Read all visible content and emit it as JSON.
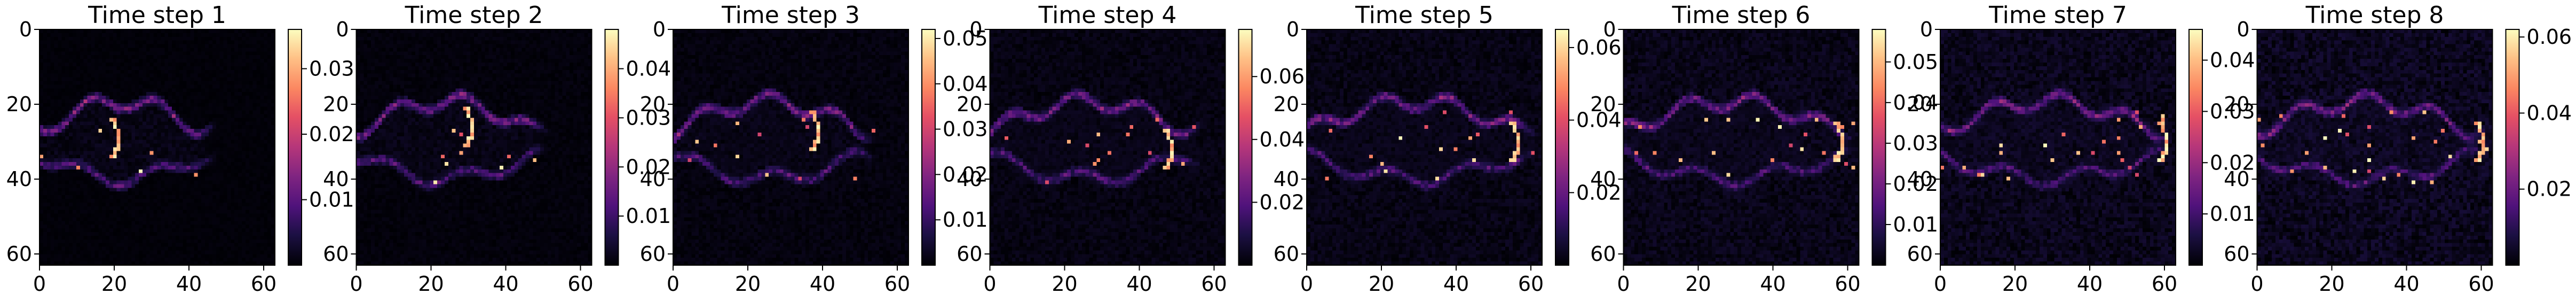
{
  "figure": {
    "colormap": "magma",
    "background": "#ffffff"
  },
  "chart_data": [
    {
      "type": "heatmap",
      "title": "Time step 1",
      "xlim": [
        0,
        63
      ],
      "ylim": [
        63,
        0
      ],
      "x_ticks": [
        0,
        20,
        40,
        60
      ],
      "y_ticks": [
        0,
        20,
        40,
        60
      ],
      "x_tick_labels": [
        "0",
        "20",
        "40",
        "60"
      ],
      "y_tick_labels": [
        "0",
        "20",
        "40",
        "60"
      ],
      "colorbar": {
        "min": 0,
        "max": 0.036,
        "ticks": [
          0.01,
          0.02,
          0.03
        ],
        "tick_labels": [
          "0.01",
          "0.02",
          "0.03"
        ]
      },
      "plume": {
        "x_end": 48,
        "arc_x": 18,
        "arc_y": 29
      }
    },
    {
      "type": "heatmap",
      "title": "Time step 2",
      "xlim": [
        0,
        63
      ],
      "ylim": [
        63,
        0
      ],
      "x_ticks": [
        0,
        20,
        40,
        60
      ],
      "y_ticks": [
        0,
        20,
        40,
        60
      ],
      "x_tick_labels": [
        "0",
        "20",
        "40",
        "60"
      ],
      "y_tick_labels": [
        "0",
        "20",
        "40",
        "60"
      ],
      "colorbar": {
        "min": 0,
        "max": 0.048,
        "ticks": [
          0.01,
          0.02,
          0.03,
          0.04
        ],
        "tick_labels": [
          "0.01",
          "0.02",
          "0.03",
          "0.04"
        ]
      },
      "plume": {
        "x_end": 52,
        "arc_x": 28,
        "arc_y": 26
      }
    },
    {
      "type": "heatmap",
      "title": "Time step 3",
      "xlim": [
        0,
        63
      ],
      "ylim": [
        63,
        0
      ],
      "x_ticks": [
        0,
        20,
        40,
        60
      ],
      "y_ticks": [
        0,
        20,
        40,
        60
      ],
      "x_tick_labels": [
        "0",
        "20",
        "40",
        "60"
      ],
      "y_tick_labels": [
        "0",
        "20",
        "40",
        "60"
      ],
      "colorbar": {
        "min": 0,
        "max": 0.052,
        "ticks": [
          0.01,
          0.02,
          0.03,
          0.04,
          0.05
        ],
        "tick_labels": [
          "0.01",
          "0.02",
          "0.03",
          "0.04",
          "0.05"
        ]
      },
      "plume": {
        "x_end": 55,
        "arc_x": 36,
        "arc_y": 27
      }
    },
    {
      "type": "heatmap",
      "title": "Time step 4",
      "xlim": [
        0,
        63
      ],
      "ylim": [
        63,
        0
      ],
      "x_ticks": [
        0,
        20,
        40,
        60
      ],
      "y_ticks": [
        0,
        20,
        40,
        60
      ],
      "x_tick_labels": [
        "0",
        "20",
        "40",
        "60"
      ],
      "y_tick_labels": [
        "0",
        "20",
        "40",
        "60"
      ],
      "colorbar": {
        "min": 0,
        "max": 0.075,
        "ticks": [
          0.02,
          0.04,
          0.06
        ],
        "tick_labels": [
          "0.02",
          "0.04",
          "0.06"
        ]
      },
      "plume": {
        "x_end": 58,
        "arc_x": 46,
        "arc_y": 32
      }
    },
    {
      "type": "heatmap",
      "title": "Time step 5",
      "xlim": [
        0,
        63
      ],
      "ylim": [
        63,
        0
      ],
      "x_ticks": [
        0,
        20,
        40,
        60
      ],
      "y_ticks": [
        0,
        20,
        40,
        60
      ],
      "x_tick_labels": [
        "0",
        "20",
        "40",
        "60"
      ],
      "y_tick_labels": [
        "0",
        "20",
        "40",
        "60"
      ],
      "colorbar": {
        "min": 0,
        "max": 0.065,
        "ticks": [
          0.02,
          0.04,
          0.06
        ],
        "tick_labels": [
          "0.02",
          "0.04",
          "0.06"
        ]
      },
      "plume": {
        "x_end": 63,
        "arc_x": 54,
        "arc_y": 30
      }
    },
    {
      "type": "heatmap",
      "title": "Time step 6",
      "xlim": [
        0,
        63
      ],
      "ylim": [
        63,
        0
      ],
      "x_ticks": [
        0,
        20,
        40,
        60
      ],
      "y_ticks": [
        0,
        20,
        40,
        60
      ],
      "x_tick_labels": [
        "0",
        "20",
        "40",
        "60"
      ],
      "y_tick_labels": [
        "0",
        "20",
        "40",
        "60"
      ],
      "colorbar": {
        "min": 0,
        "max": 0.058,
        "ticks": [
          0.01,
          0.02,
          0.03,
          0.04,
          0.05
        ],
        "tick_labels": [
          "0.01",
          "0.02",
          "0.03",
          "0.04",
          "0.05"
        ]
      },
      "plume": {
        "x_end": 63,
        "arc_x": 56,
        "arc_y": 30
      }
    },
    {
      "type": "heatmap",
      "title": "Time step 7",
      "xlim": [
        0,
        63
      ],
      "ylim": [
        63,
        0
      ],
      "x_ticks": [
        0,
        20,
        40,
        60
      ],
      "y_ticks": [
        0,
        20,
        40,
        60
      ],
      "x_tick_labels": [
        "0",
        "20",
        "40",
        "60"
      ],
      "y_tick_labels": [
        "0",
        "20",
        "40",
        "60"
      ],
      "colorbar": {
        "min": 0,
        "max": 0.046,
        "ticks": [
          0.01,
          0.02,
          0.03,
          0.04
        ],
        "tick_labels": [
          "0.01",
          "0.02",
          "0.03",
          "0.04"
        ]
      },
      "plume": {
        "x_end": 63,
        "arc_x": 58,
        "arc_y": 30
      }
    },
    {
      "type": "heatmap",
      "title": "Time step 8",
      "xlim": [
        0,
        63
      ],
      "ylim": [
        63,
        0
      ],
      "x_ticks": [
        0,
        20,
        40,
        60
      ],
      "y_ticks": [
        0,
        20,
        40,
        60
      ],
      "x_tick_labels": [
        "0",
        "20",
        "40",
        "60"
      ],
      "y_tick_labels": [
        "0",
        "20",
        "40",
        "60"
      ],
      "colorbar": {
        "min": 0,
        "max": 0.062,
        "ticks": [
          0.02,
          0.04,
          0.06
        ],
        "tick_labels": [
          "0.02",
          "0.04",
          "0.06"
        ]
      },
      "plume": {
        "x_end": 63,
        "arc_x": 58,
        "arc_y": 30
      }
    }
  ]
}
